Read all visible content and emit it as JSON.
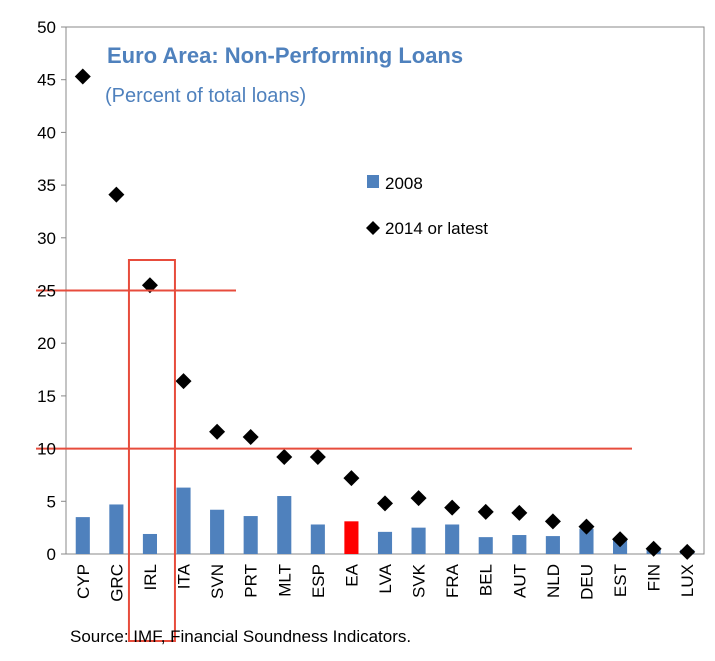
{
  "chart_data": {
    "type": "bar",
    "title": "Euro Area: Non-Performing Loans",
    "subtitle": "(Percent of total loans)",
    "categories": [
      "CYP",
      "GRC",
      "IRL",
      "ITA",
      "SVN",
      "PRT",
      "MLT",
      "ESP",
      "EA",
      "LVA",
      "SVK",
      "FRA",
      "BEL",
      "AUT",
      "NLD",
      "DEU",
      "EST",
      "FIN",
      "LUX"
    ],
    "series": [
      {
        "name": "2008",
        "kind": "bar",
        "color": "#4f81bd",
        "values": [
          3.5,
          4.7,
          1.9,
          6.3,
          4.2,
          3.6,
          5.5,
          2.8,
          3.1,
          2.1,
          2.5,
          2.8,
          1.6,
          1.8,
          1.7,
          2.4,
          1.4,
          0.5,
          0.4
        ]
      },
      {
        "name": "2014 or latest",
        "kind": "marker",
        "color": "#000000",
        "values": [
          45.3,
          34.1,
          25.5,
          16.4,
          11.6,
          11.1,
          9.2,
          9.2,
          7.2,
          4.8,
          5.3,
          4.4,
          4.0,
          3.9,
          3.1,
          2.6,
          1.4,
          0.5,
          0.2
        ]
      }
    ],
    "highlight": {
      "category": "EA",
      "color": "#ff0000"
    },
    "ylim": [
      0,
      50
    ],
    "yticks": [
      0,
      5,
      10,
      15,
      20,
      25,
      30,
      35,
      40,
      45,
      50
    ],
    "xlabel": "",
    "ylabel": "",
    "grid": false,
    "legend_position": "center",
    "annotations": {
      "color": "#e74c3c",
      "highlight_box_category": "IRL",
      "reference_lines": [
        25,
        10
      ]
    }
  },
  "source_text": "Source: IMF, Financial  Soundness Indicators."
}
